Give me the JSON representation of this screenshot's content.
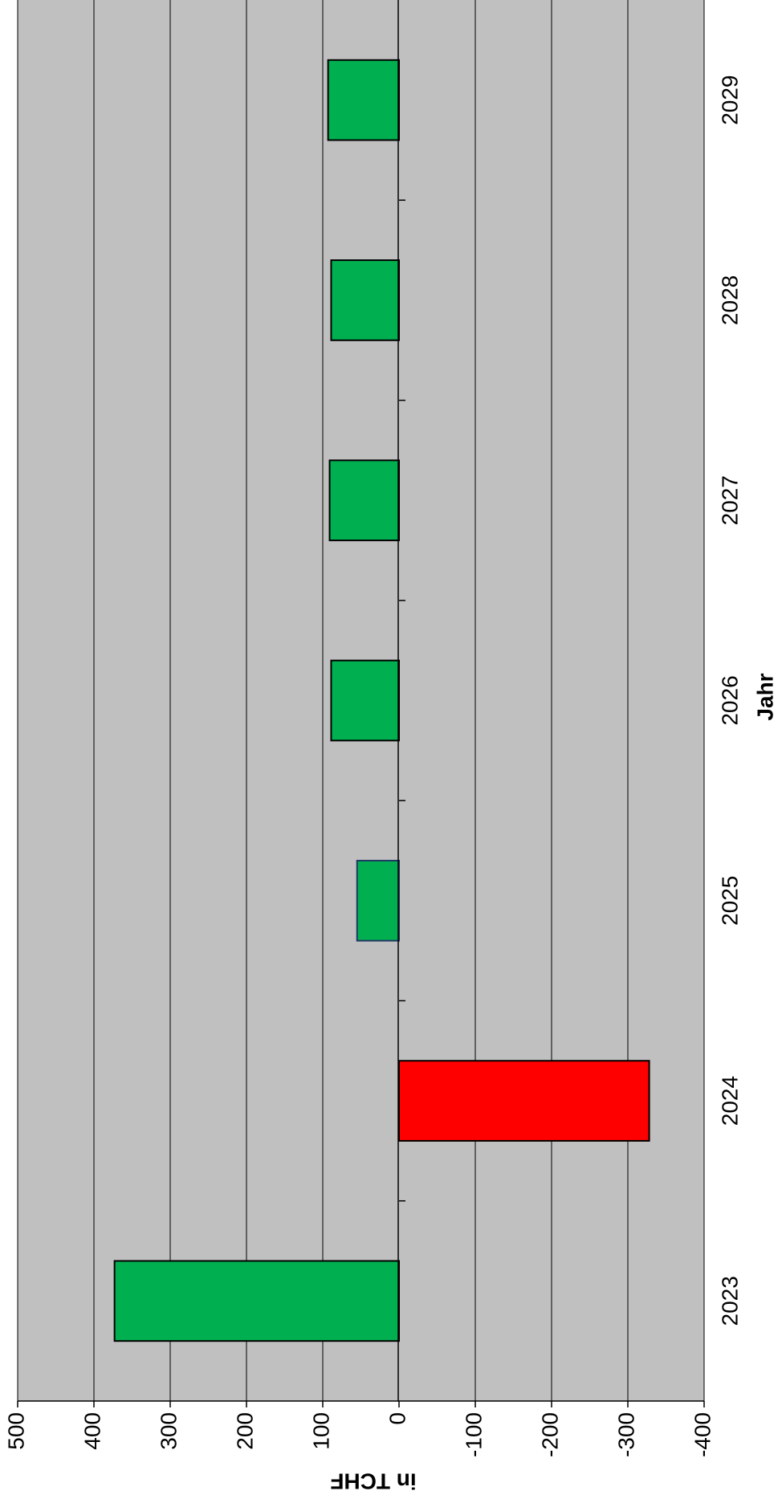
{
  "chart_data": {
    "type": "bar",
    "orientation": "horizontal",
    "title": "",
    "xlabel": "Jahr",
    "ylabel": "in TCHF",
    "categories": [
      "2023",
      "2024",
      "2025",
      "2026",
      "2027",
      "2028",
      "2029"
    ],
    "values": [
      373,
      -328,
      55,
      89,
      91,
      89,
      93
    ],
    "ylim": [
      -400,
      500
    ],
    "yticks": [
      "500",
      "400",
      "300",
      "200",
      "100",
      "0",
      "-100",
      "-200",
      "-300",
      "-400"
    ],
    "grid": true,
    "legend": "none",
    "colors": {
      "plot_background": "#c0c0c0",
      "positive_bar": "#00b050",
      "negative_bar": "#ff0000",
      "bar_outline": "#000000",
      "bar_outline_2025": "#1f3864",
      "gridline": "#000000"
    }
  }
}
